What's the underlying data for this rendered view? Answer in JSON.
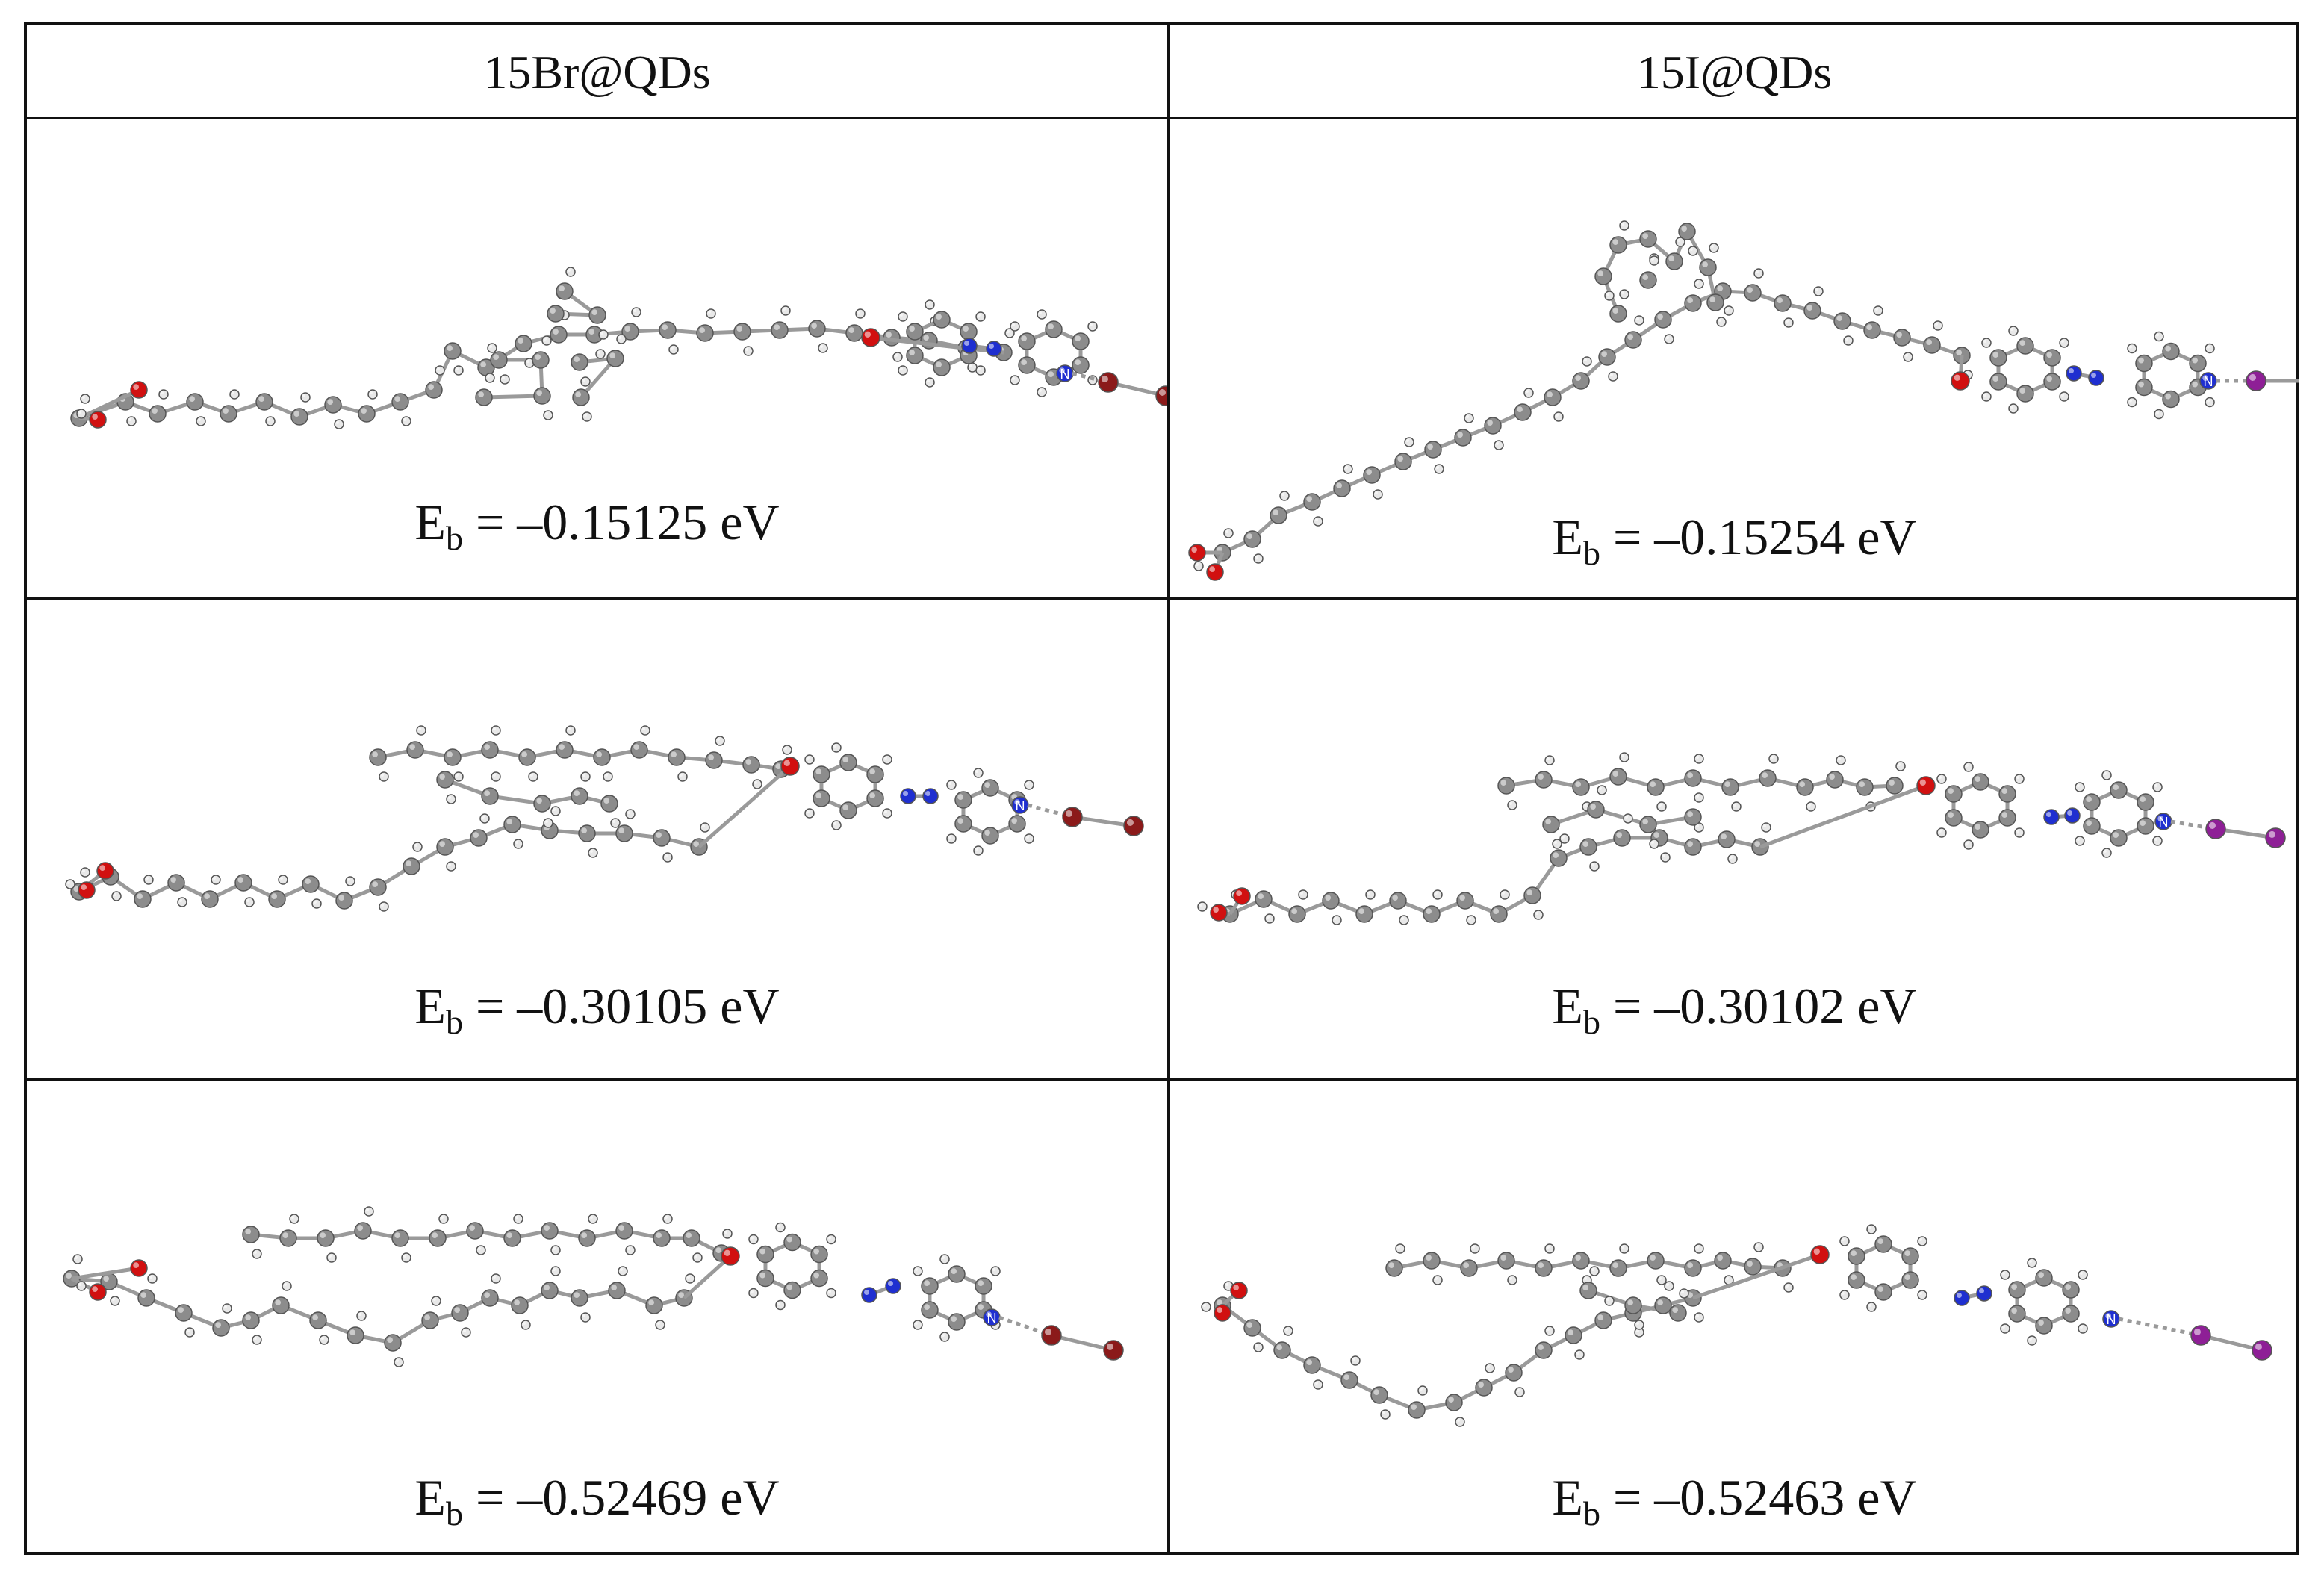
{
  "table": {
    "headers": [
      "15Br@QDs",
      "15I@QDs"
    ],
    "rows": [
      {
        "left": {
          "eb_symbol": "E",
          "eb_sub": "b",
          "eb_value": " = –0.15125 eV"
        },
        "right": {
          "eb_symbol": "E",
          "eb_sub": "b",
          "eb_value": " = –0.15254 eV"
        }
      },
      {
        "left": {
          "eb_symbol": "E",
          "eb_sub": "b",
          "eb_value": " = –0.30105 eV"
        },
        "right": {
          "eb_symbol": "E",
          "eb_sub": "b",
          "eb_value": " = –0.30102 eV"
        }
      },
      {
        "left": {
          "eb_symbol": "E",
          "eb_sub": "b",
          "eb_value": " = –0.52469 eV"
        },
        "right": {
          "eb_symbol": "E",
          "eb_sub": "b",
          "eb_value": " = –0.52463 eV"
        }
      }
    ],
    "atom_labels": {
      "nitrogen": "N"
    }
  },
  "colors": {
    "carbon": "#8c8c8c",
    "hydrogen": "#e8e8e8",
    "oxygen": "#d11010",
    "nitrogen": "#1f2fd0",
    "bromine": "#8b1a1a",
    "iodine": "#8e1f96",
    "bond": "#9a9a9a"
  }
}
